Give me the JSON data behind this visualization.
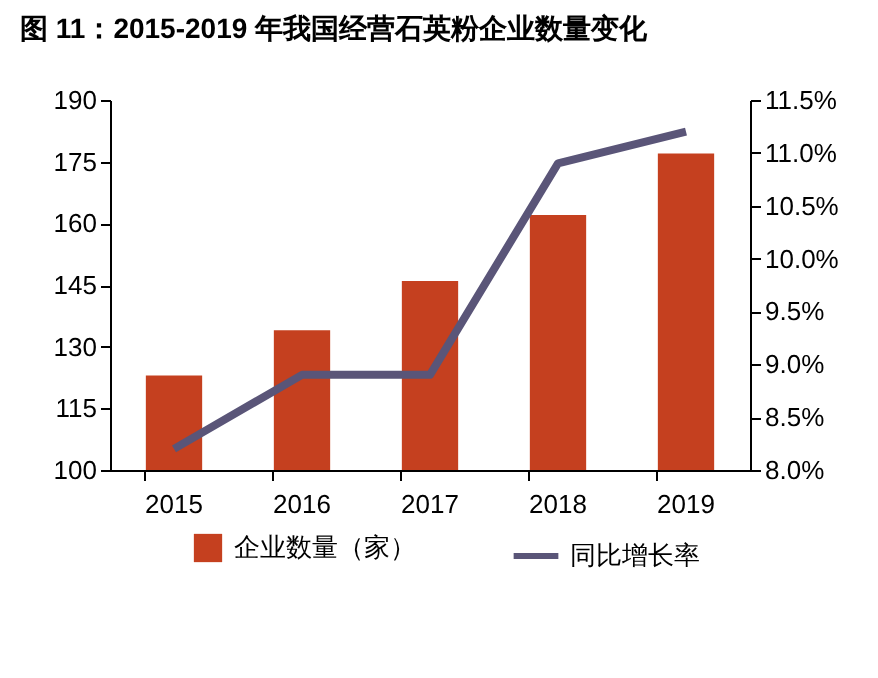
{
  "chart_data": {
    "type": "bar",
    "title": "图 11：2015-2019 年我国经营石英粉企业数量变化",
    "categories": [
      "2015",
      "2016",
      "2017",
      "2018",
      "2019"
    ],
    "series": [
      {
        "name": "企业数量（家）",
        "color": "#c5401f",
        "values": [
          123,
          134,
          146,
          162,
          177
        ]
      },
      {
        "name": "同比增长率",
        "type": "line",
        "axis": "y2",
        "color": "#5a5578",
        "values": [
          8.2,
          8.9,
          8.9,
          10.9,
          11.2
        ]
      }
    ],
    "ylim": [
      100,
      190
    ],
    "yticks": [
      100,
      115,
      130,
      145,
      160,
      175,
      190
    ],
    "y2lim": [
      8,
      11.5
    ],
    "y2ticks": [
      {
        "value": 8,
        "label": "8.0%"
      },
      {
        "value": 8.5,
        "label": "8.5%"
      },
      {
        "value": 9,
        "label": "9.0%"
      },
      {
        "value": 9.5,
        "label": "9.5%"
      },
      {
        "value": 10,
        "label": "10.0%"
      },
      {
        "value": 10.5,
        "label": "10.5%"
      },
      {
        "value": 11,
        "label": "11.0%"
      },
      {
        "value": 11.5,
        "label": "11.5%"
      }
    ],
    "grid": false,
    "legend": "bottom"
  }
}
